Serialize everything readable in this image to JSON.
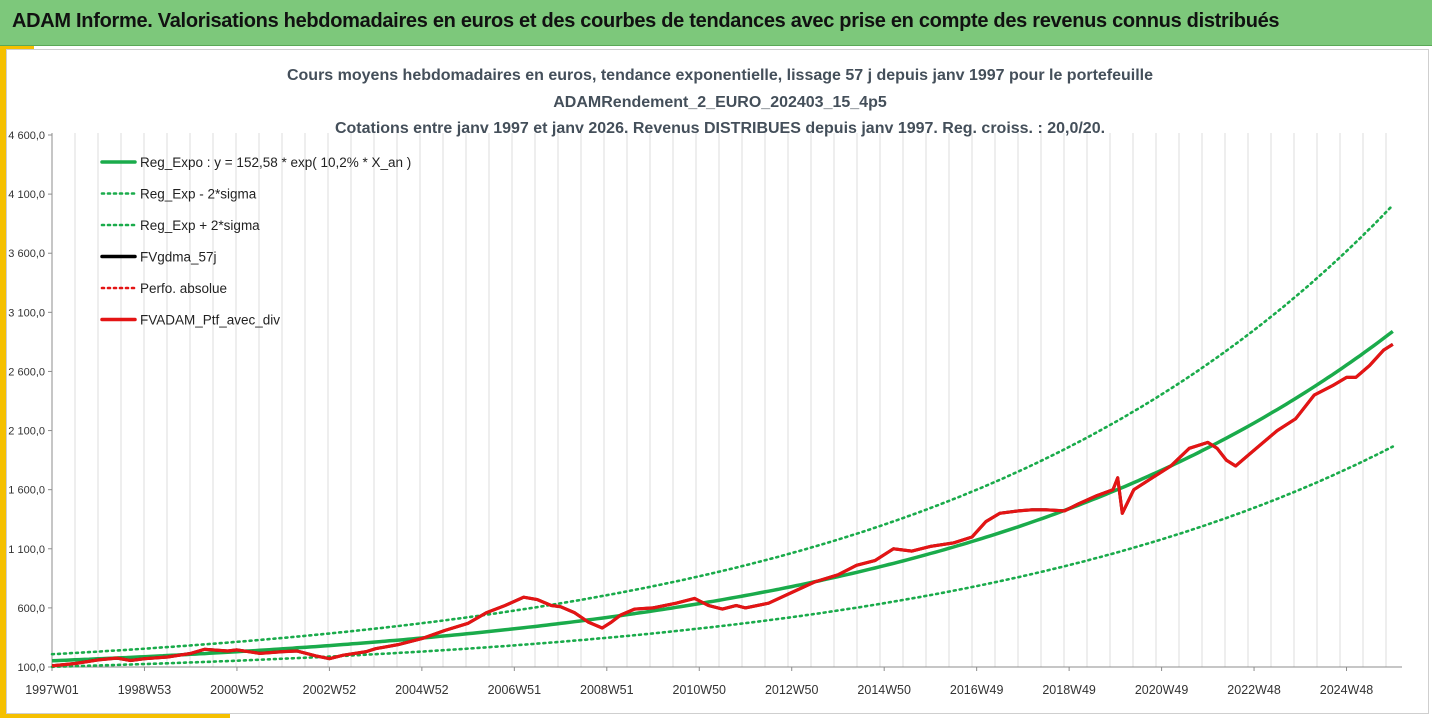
{
  "header": {
    "title": "ADAM Informe. Valorisations hebdomadaires en euros et des courbes de tendances avec prise en compte des revenus connus distribués"
  },
  "colors": {
    "header_bg": "#7dc87b",
    "accent": "#f5c000",
    "trend": "#1aab4b",
    "perf": "#e41414",
    "smooth": "#000000"
  },
  "chart_data": {
    "type": "line",
    "title_lines": [
      "Cours moyens hebdomadaires  en euros, tendance exponentielle, lissage 57 j depuis janv 1997 pour le portefeuille",
      "ADAMRendement_2_EURO_202403_15_4p5",
      "Cotations entre janv 1997 et janv 2026. Revenus DISTRIBUES depuis janv 1997. Reg. croiss. : 20,0/20."
    ],
    "xlabel": "",
    "ylabel": "",
    "xlim": [
      1997.0,
      2026.2
    ],
    "ylim": [
      100,
      4600
    ],
    "y_ticks": [
      100,
      600,
      1100,
      1600,
      2100,
      2600,
      3100,
      3600,
      4100,
      4600
    ],
    "y_tick_labels": [
      "100,0",
      "600,0",
      "1 100,0",
      "1 600,0",
      "2 100,0",
      "2 600,0",
      "3 100,0",
      "3 600,0",
      "4 100,0",
      "4 600,0"
    ],
    "x_ticks": [
      1997.0,
      1999.0,
      2001.0,
      2003.0,
      2005.0,
      2007.0,
      2009.0,
      2011.0,
      2013.0,
      2015.0,
      2017.0,
      2019.0,
      2021.0,
      2023.0,
      2025.0
    ],
    "x_tick_labels": [
      "1997W01",
      "1998W53",
      "2000W52",
      "2002W52",
      "2004W52",
      "2006W51",
      "2008W51",
      "2010W50",
      "2012W50",
      "2014W50",
      "2016W49",
      "2018W49",
      "2020W49",
      "2022W48",
      "2024W48"
    ],
    "grid": "vertical",
    "legend": {
      "position": "top-left",
      "entries": [
        {
          "label": "Reg_Expo : y = 152,58 * exp( 10,2% *  X_an )",
          "color": "#1aab4b",
          "style": "solid"
        },
        {
          "label": "Reg_Exp - 2*sigma",
          "color": "#1aab4b",
          "style": "dotted"
        },
        {
          "label": "Reg_Exp + 2*sigma",
          "color": "#1aab4b",
          "style": "dotted"
        },
        {
          "label": "FVgdma_57j",
          "color": "#000000",
          "style": "solid"
        },
        {
          "label": "Perfo. absolue",
          "color": "#e41414",
          "style": "dotted"
        },
        {
          "label": "FVADAM_Ptf_avec_div",
          "color": "#e41414",
          "style": "solid"
        }
      ]
    },
    "series": [
      {
        "name": "Reg_Expo",
        "kind": "exponential",
        "a": 152.58,
        "growth": 0.102,
        "x0": 1997.0,
        "x_end": 2026.0
      },
      {
        "name": "Reg_Exp - 2*sigma",
        "kind": "exponential",
        "a": 102,
        "growth": 0.102,
        "x0": 1997.0,
        "x_end": 2026.0
      },
      {
        "name": "Reg_Exp + 2*sigma",
        "kind": "exponential",
        "a": 208,
        "growth": 0.102,
        "x0": 1997.0,
        "x_end": 2026.0
      },
      {
        "name": "FVADAM_Ptf_avec_div",
        "x": [
          1997.0,
          1997.5,
          1998.0,
          1998.4,
          1998.7,
          1999.0,
          1999.5,
          2000.0,
          2000.3,
          2000.8,
          2001.0,
          2001.5,
          2002.0,
          2002.3,
          2002.7,
          2003.0,
          2003.3,
          2003.8,
          2004.0,
          2004.5,
          2005.0,
          2005.5,
          2006.0,
          2006.4,
          2006.8,
          2007.2,
          2007.5,
          2007.8,
          2008.0,
          2008.3,
          2008.6,
          2008.9,
          2009.1,
          2009.3,
          2009.6,
          2010.0,
          2010.5,
          2010.9,
          2011.2,
          2011.5,
          2011.8,
          2012.0,
          2012.5,
          2013.0,
          2013.5,
          2014.0,
          2014.4,
          2014.8,
          2015.2,
          2015.6,
          2016.0,
          2016.5,
          2016.9,
          2017.2,
          2017.5,
          2017.9,
          2018.2,
          2018.5,
          2018.9,
          2019.2,
          2019.6,
          2019.95,
          2020.05,
          2020.15,
          2020.4,
          2020.8,
          2021.2,
          2021.6,
          2022.0,
          2022.2,
          2022.4,
          2022.6,
          2022.9,
          2023.2,
          2023.5,
          2023.9,
          2024.3,
          2024.7,
          2025.0,
          2025.2,
          2025.5,
          2025.8,
          2026.0
        ],
        "values": [
          110,
          130,
          160,
          175,
          155,
          170,
          185,
          215,
          250,
          235,
          245,
          215,
          230,
          235,
          195,
          170,
          200,
          230,
          255,
          290,
          340,
          410,
          470,
          560,
          620,
          690,
          670,
          620,
          610,
          560,
          480,
          430,
          480,
          540,
          590,
          600,
          640,
          680,
          620,
          590,
          620,
          600,
          640,
          730,
          820,
          880,
          960,
          1000,
          1100,
          1080,
          1120,
          1150,
          1200,
          1330,
          1400,
          1420,
          1430,
          1430,
          1420,
          1480,
          1550,
          1600,
          1700,
          1400,
          1600,
          1700,
          1800,
          1950,
          2000,
          1950,
          1850,
          1800,
          1900,
          2000,
          2100,
          2200,
          2400,
          2480,
          2550,
          2550,
          2650,
          2780,
          2830
        ]
      }
    ]
  }
}
